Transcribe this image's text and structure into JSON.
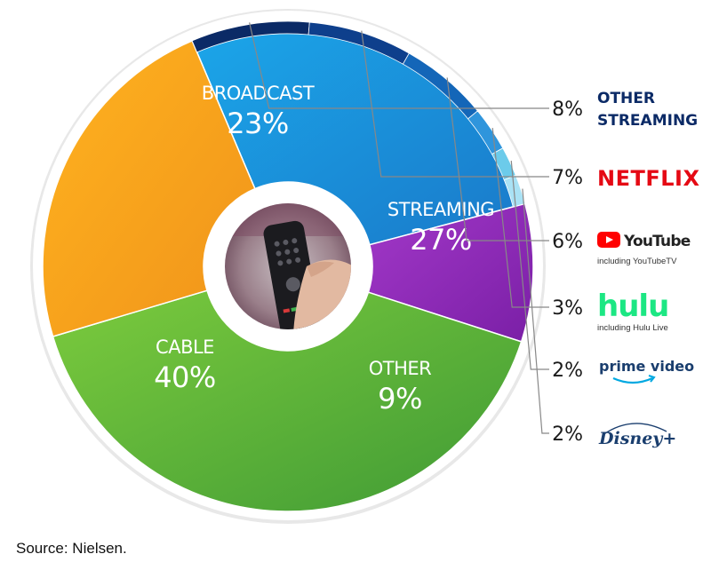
{
  "chart_data": {
    "type": "pie",
    "slices": [
      {
        "label": "STREAMING",
        "value": 27,
        "value_label": "27%",
        "color": "#1d93d8"
      },
      {
        "label": "OTHER",
        "value": 9,
        "value_label": "9%",
        "color": "#8e2bb5"
      },
      {
        "label": "CABLE",
        "value": 40,
        "value_label": "40%",
        "color": "#5cb33c"
      },
      {
        "label": "BROADCAST",
        "value": 23,
        "value_label": "23%",
        "color": "#f5a11a"
      }
    ],
    "streaming_breakdown": [
      {
        "name": "OTHER STREAMING",
        "name_lines": [
          "OTHER",
          "STREAMING"
        ],
        "value": 8,
        "value_label": "8%",
        "color": "#0b2a66",
        "icon": "other-streaming-text"
      },
      {
        "name": "NETFLIX",
        "value": 7,
        "value_label": "7%",
        "color": "#0e3f8c",
        "icon": "netflix-logo"
      },
      {
        "name": "YouTube",
        "subtext": "including YouTubeTV",
        "value": 6,
        "value_label": "6%",
        "color": "#1466b8",
        "icon": "youtube-logo"
      },
      {
        "name": "hulu",
        "subtext": "including Hulu Live",
        "value": 3,
        "value_label": "3%",
        "color": "#2f95dc",
        "icon": "hulu-logo"
      },
      {
        "name": "prime video",
        "value": 2,
        "value_label": "2%",
        "color": "#6ccbea",
        "icon": "prime-video-logo"
      },
      {
        "name": "Disney+",
        "value": 2,
        "value_label": "2%",
        "color": "#a9e2f5",
        "icon": "disney-plus-logo"
      }
    ],
    "center_image": "tv-remote-photo"
  },
  "source": "Source: Nielsen."
}
